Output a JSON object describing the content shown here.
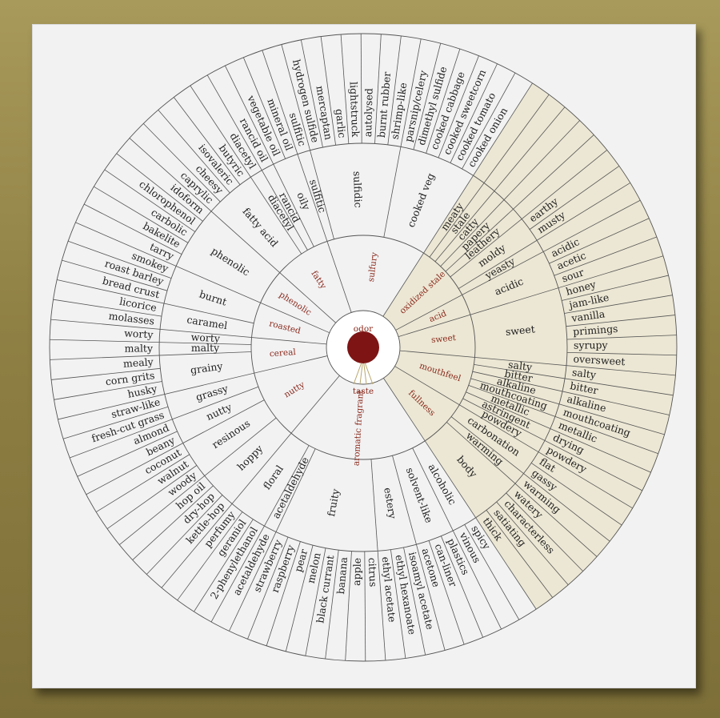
{
  "colors": {
    "board": "#f2f2f3",
    "tasteSector": "#ece7d4",
    "line": "#555555",
    "accent": "#8a2a1c",
    "text": "#222222"
  },
  "center": {
    "odor_label": "odor",
    "taste_label": "taste"
  },
  "wheel": [
    {
      "core": "nutty",
      "taste": false,
      "cats": [
        {
          "label": "hoppy",
          "terms": [
            "kettle-hop",
            "dry-hop",
            "hop oil"
          ]
        },
        {
          "label": "resinous",
          "terms": [
            "woody",
            "walnut",
            "coconut"
          ]
        },
        {
          "label": "nutty",
          "terms": [
            "beany",
            "almond"
          ]
        },
        {
          "label": "grassy",
          "terms": [
            "fresh-cut grass",
            "straw-like"
          ]
        }
      ]
    },
    {
      "core": "cereal",
      "taste": false,
      "cats": [
        {
          "label": "grainy",
          "terms": [
            "husky",
            "corn grits",
            "mealy"
          ]
        },
        {
          "label": "malty",
          "terms": [
            "malty"
          ]
        },
        {
          "label": "worty",
          "terms": [
            "worty"
          ]
        }
      ]
    },
    {
      "core": "roasted",
      "taste": false,
      "cats": [
        {
          "label": "caramel",
          "terms": [
            "molasses",
            "licorice"
          ]
        },
        {
          "label": "burnt",
          "terms": [
            "bread crust",
            "roast barley",
            "smokey"
          ]
        }
      ]
    },
    {
      "core": "phenolic",
      "taste": false,
      "cats": [
        {
          "label": "phenolic",
          "terms": [
            "tarry",
            "bakelite",
            "carbolic",
            "chlorophenol",
            "idoform"
          ]
        }
      ]
    },
    {
      "core": "fatty",
      "taste": false,
      "cats": [
        {
          "label": "fatty acid",
          "terms": [
            "caprylic",
            "cheesy",
            "isovaleric",
            "butyric"
          ]
        },
        {
          "label": "diacetyl",
          "terms": [
            "diacetyl"
          ]
        },
        {
          "label": "rancid",
          "terms": [
            "rancid oil"
          ]
        },
        {
          "label": "oily",
          "terms": [
            "vegetable oil",
            "mineral oil"
          ]
        }
      ]
    },
    {
      "core": "sulfury",
      "taste": false,
      "cats": [
        {
          "label": "sulfitic",
          "terms": [
            "sulfitic"
          ]
        },
        {
          "label": "sulfidic",
          "terms": [
            "hydrogen sulfide",
            "mercaptan",
            "garlic",
            "lightstruck",
            "autolysed",
            "burnt rubber",
            "shrimp-like"
          ]
        },
        {
          "label": "cooked veg",
          "terms": [
            "parsnip/celery",
            "dimethyl sulfide",
            "cooked cabbage",
            "cooked sweetcorn",
            "cooked tomato",
            "cooked onion"
          ]
        }
      ]
    },
    {
      "core": "oxidized stale",
      "taste": true,
      "cats": [
        {
          "label": "meaty",
          "terms": []
        },
        {
          "label": "stale",
          "terms": []
        },
        {
          "label": "catty",
          "terms": []
        },
        {
          "label": "papery",
          "terms": []
        },
        {
          "label": "leathery",
          "terms": []
        },
        {
          "label": "moldy",
          "terms": [
            "earthy",
            "musty"
          ]
        },
        {
          "label": "yeasty",
          "terms": []
        }
      ]
    },
    {
      "core": "acid",
      "taste": true,
      "cats": [
        {
          "label": "acidic",
          "terms": [
            "acidic",
            "acetic",
            "sour"
          ]
        }
      ]
    },
    {
      "core": "sweet",
      "taste": true,
      "cats": [
        {
          "label": "sweet",
          "terms": [
            "honey",
            "jam-like",
            "vanilla",
            "primings",
            "syrupy",
            "oversweet"
          ]
        }
      ]
    },
    {
      "core": "mouthfeel",
      "taste": true,
      "cats": [
        {
          "label": "salty",
          "terms": [
            "salty"
          ]
        },
        {
          "label": "bitter",
          "terms": [
            "bitter"
          ]
        },
        {
          "label": "alkaline",
          "terms": [
            "alkaline"
          ]
        },
        {
          "label": "mouthcoating",
          "terms": [
            "mouthcoating"
          ]
        },
        {
          "label": "metallic",
          "terms": [
            "metallic"
          ]
        },
        {
          "label": "astringent",
          "terms": [
            "drying"
          ]
        },
        {
          "label": "powdery",
          "terms": [
            "powdery"
          ]
        }
      ]
    },
    {
      "core": "fullness",
      "taste": true,
      "cats": [
        {
          "label": "carbonation",
          "terms": [
            "flat",
            "gassy"
          ]
        },
        {
          "label": "warming",
          "terms": [
            "warming"
          ]
        },
        {
          "label": "body",
          "terms": [
            "watery",
            "characterless",
            "satiating",
            "thick"
          ]
        }
      ]
    },
    {
      "core": "aromatic fragrant",
      "taste": false,
      "cats": [
        {
          "label": "alcoholic",
          "terms": [
            "spicy",
            "vinous"
          ]
        },
        {
          "label": "solvent-like",
          "terms": [
            "plastics",
            "can-liner",
            "acetone"
          ]
        },
        {
          "label": "estery",
          "terms": [
            "isoamyl acetate",
            "ethyl hexanoate",
            "ethyl acetate"
          ]
        },
        {
          "label": "fruity",
          "terms": [
            "citrus",
            "apple",
            "banana",
            "black currant",
            "melon",
            "pear",
            "raspberry",
            "strawberry"
          ]
        },
        {
          "label": "acetaldehyde",
          "terms": [
            "acetaldehyde"
          ]
        },
        {
          "label": "floral",
          "terms": [
            "2-phenylethanol",
            "geraniol",
            "perfumy"
          ]
        }
      ]
    }
  ]
}
